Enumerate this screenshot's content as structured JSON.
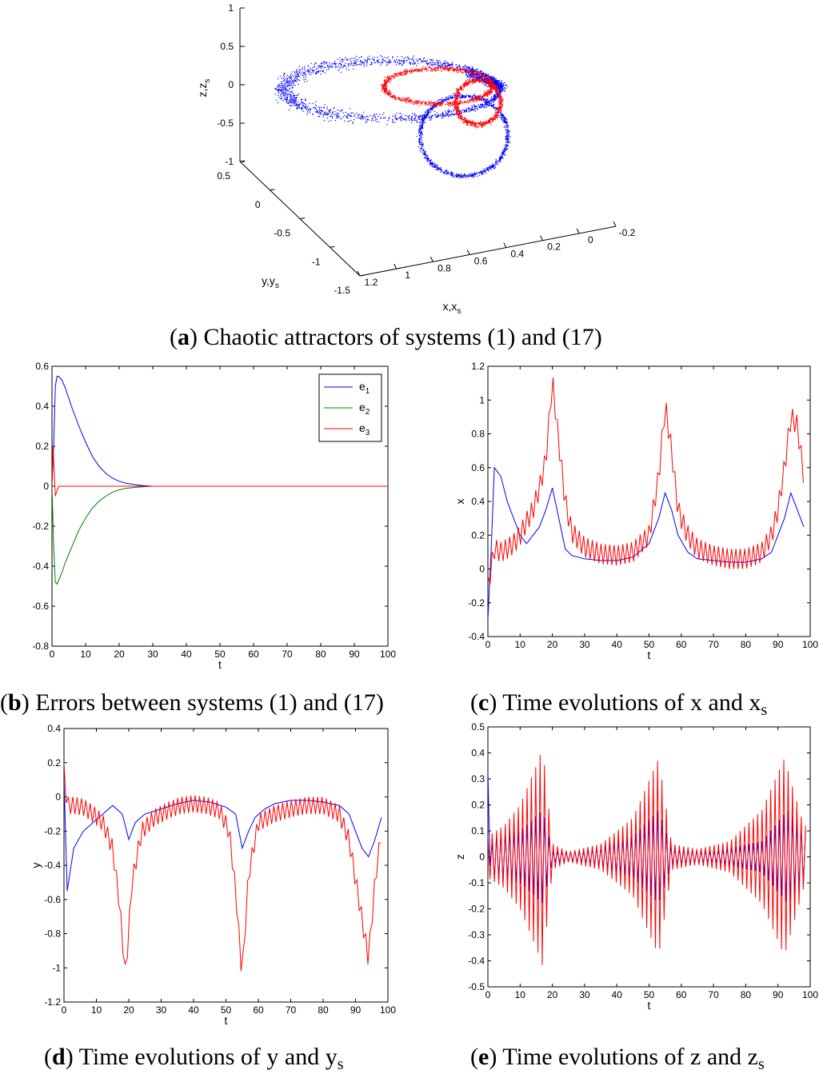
{
  "colors": {
    "blue": "#0000ff",
    "red": "#ff0000",
    "green": "#008000",
    "axis": "#000000"
  },
  "captions": {
    "a": {
      "letter": "a",
      "text": " Chaotic attractors of systems (1) and (17)"
    },
    "b": {
      "letter": "b",
      "text": " Errors between systems (1) and (17)"
    },
    "c": {
      "letter": "c",
      "text": " Time evolutions of x and x",
      "sub": "s"
    },
    "d": {
      "letter": "d",
      "text": " Time evolutions of y and y",
      "sub": "s"
    },
    "e": {
      "letter": "e",
      "text": " Time evolutions of z and z",
      "sub": "s"
    }
  },
  "chart_data": [
    {
      "id": "a",
      "type": "scatter",
      "title": "",
      "projection": "3d",
      "xlabel": "x,x_s",
      "ylabel": "y,y_s",
      "zlabel": "z,z_s",
      "xlim": [
        -0.2,
        1.2
      ],
      "ylim": [
        -1.5,
        0.5
      ],
      "zlim": [
        -1,
        1
      ],
      "x_ticks": [
        "1.2",
        "1",
        "0.8",
        "0.6",
        "0.4",
        "0.2",
        "0",
        "-0.2"
      ],
      "y_ticks": [
        "0.5",
        "0",
        "-0.5",
        "-1",
        "-1.5"
      ],
      "z_ticks": [
        "1",
        "0.5",
        "0",
        "-0.5",
        "-1"
      ],
      "series": [
        {
          "name": "",
          "color": "blue",
          "description_values": "large attractor loop"
        },
        {
          "name": "",
          "color": "red",
          "description_values": "small attractor loop"
        }
      ]
    },
    {
      "id": "b",
      "type": "line",
      "title": "",
      "xlabel": "t",
      "ylabel": "",
      "xlim": [
        0,
        100
      ],
      "ylim": [
        -0.8,
        0.6
      ],
      "x_ticks": [
        "0",
        "10",
        "20",
        "30",
        "40",
        "50",
        "60",
        "70",
        "80",
        "90",
        "100"
      ],
      "y_ticks": [
        "0.6",
        "0.4",
        "0.2",
        "0",
        "-0.2",
        "-0.4",
        "-0.6",
        "-0.8"
      ],
      "legend": [
        "e1",
        "e2",
        "e3"
      ],
      "legend_position": "top-right",
      "series": [
        {
          "name": "e1",
          "color": "blue",
          "x": [
            0,
            0.5,
            1,
            1.5,
            2,
            3,
            4,
            5,
            6,
            8,
            10,
            12,
            14,
            16,
            18,
            20,
            22,
            25,
            28,
            30,
            100
          ],
          "y": [
            0,
            0.2,
            0.5,
            0.55,
            0.55,
            0.53,
            0.49,
            0.44,
            0.39,
            0.3,
            0.22,
            0.15,
            0.1,
            0.065,
            0.04,
            0.025,
            0.015,
            0.007,
            0.002,
            0,
            0
          ]
        },
        {
          "name": "e2",
          "color": "green",
          "x": [
            0,
            0.5,
            1,
            1.5,
            2,
            3,
            4,
            5,
            6,
            8,
            10,
            12,
            14,
            16,
            18,
            20,
            22,
            25,
            28,
            30,
            100
          ],
          "y": [
            0,
            -0.3,
            -0.48,
            -0.49,
            -0.47,
            -0.43,
            -0.38,
            -0.34,
            -0.3,
            -0.22,
            -0.16,
            -0.11,
            -0.075,
            -0.05,
            -0.03,
            -0.018,
            -0.011,
            -0.005,
            -0.002,
            0,
            0
          ]
        },
        {
          "name": "e3",
          "color": "red",
          "x": [
            0,
            0.3,
            0.6,
            1,
            1.5,
            2,
            3,
            4,
            100
          ],
          "y": [
            0,
            0.2,
            0.1,
            -0.05,
            -0.02,
            0,
            0,
            0,
            0
          ]
        }
      ]
    },
    {
      "id": "c",
      "type": "line",
      "title": "",
      "xlabel": "t",
      "ylabel": "x",
      "xlim": [
        0,
        100
      ],
      "ylim": [
        -0.4,
        1.2
      ],
      "x_ticks": [
        "0",
        "10",
        "20",
        "30",
        "40",
        "50",
        "60",
        "70",
        "80",
        "90",
        "100"
      ],
      "y_ticks": [
        "1.2",
        "1",
        "0.8",
        "0.6",
        "0.4",
        "0.2",
        "0",
        "-0.2",
        "-0.4"
      ],
      "series": [
        {
          "name": "",
          "color": "blue",
          "x": [
            0,
            1,
            2,
            4,
            6,
            8,
            10,
            12,
            14,
            16,
            18,
            20,
            22,
            24,
            26,
            30,
            35,
            40,
            45,
            50,
            53,
            55,
            57,
            59,
            62,
            65,
            70,
            75,
            80,
            85,
            88,
            90,
            92,
            94,
            96,
            98
          ],
          "y": [
            -0.3,
            0.1,
            0.6,
            0.55,
            0.4,
            0.3,
            0.2,
            0.15,
            0.2,
            0.25,
            0.35,
            0.48,
            0.3,
            0.12,
            0.08,
            0.06,
            0.05,
            0.05,
            0.07,
            0.15,
            0.3,
            0.45,
            0.35,
            0.2,
            0.1,
            0.06,
            0.05,
            0.04,
            0.04,
            0.06,
            0.1,
            0.2,
            0.3,
            0.45,
            0.35,
            0.25
          ]
        },
        {
          "name": "",
          "color": "red",
          "x": [
            0,
            1,
            2,
            4,
            6,
            8,
            10,
            12,
            14,
            16,
            18,
            20,
            22,
            24,
            26,
            30,
            35,
            40,
            45,
            50,
            53,
            55,
            57,
            59,
            62,
            65,
            70,
            75,
            80,
            85,
            88,
            90,
            92,
            94,
            96,
            98
          ],
          "y": [
            -0.1,
            0.0,
            0.12,
            0.1,
            0.12,
            0.15,
            0.2,
            0.28,
            0.35,
            0.48,
            0.65,
            1.12,
            0.75,
            0.4,
            0.22,
            0.13,
            0.09,
            0.08,
            0.1,
            0.2,
            0.55,
            0.97,
            0.7,
            0.35,
            0.2,
            0.12,
            0.08,
            0.06,
            0.06,
            0.1,
            0.2,
            0.35,
            0.6,
            0.9,
            0.85,
            0.55
          ],
          "oscillation_amplitude": 0.12
        }
      ]
    },
    {
      "id": "d",
      "type": "line",
      "title": "",
      "xlabel": "t",
      "ylabel": "y",
      "xlim": [
        0,
        100
      ],
      "ylim": [
        -1.2,
        0.4
      ],
      "x_ticks": [
        "0",
        "10",
        "20",
        "30",
        "40",
        "50",
        "60",
        "70",
        "80",
        "90",
        "100"
      ],
      "y_ticks": [
        "0.4",
        "0.2",
        "0",
        "-0.2",
        "-0.4",
        "-0.6",
        "-0.8",
        "-1",
        "-1.2"
      ],
      "series": [
        {
          "name": "",
          "color": "blue",
          "x": [
            0,
            1,
            3,
            6,
            9,
            12,
            15,
            18,
            20,
            22,
            25,
            30,
            35,
            40,
            45,
            50,
            53,
            55,
            57,
            59,
            62,
            65,
            70,
            75,
            80,
            85,
            88,
            90,
            92,
            94,
            96,
            98
          ],
          "y": [
            0.1,
            -0.55,
            -0.3,
            -0.2,
            -0.15,
            -0.1,
            -0.05,
            -0.1,
            -0.25,
            -0.15,
            -0.1,
            -0.07,
            -0.04,
            -0.02,
            -0.03,
            -0.06,
            -0.1,
            -0.3,
            -0.2,
            -0.12,
            -0.07,
            -0.04,
            -0.02,
            -0.02,
            -0.03,
            -0.05,
            -0.1,
            -0.2,
            -0.3,
            -0.35,
            -0.25,
            -0.12
          ]
        },
        {
          "name": "",
          "color": "red",
          "x": [
            0,
            1,
            3,
            6,
            9,
            12,
            15,
            17,
            19,
            21,
            24,
            28,
            32,
            36,
            40,
            44,
            48,
            51,
            53,
            55,
            57,
            60,
            65,
            70,
            75,
            80,
            85,
            88,
            91,
            94,
            96,
            98
          ],
          "y": [
            0.15,
            -0.05,
            -0.05,
            -0.06,
            -0.1,
            -0.15,
            -0.3,
            -0.6,
            -1.05,
            -0.5,
            -0.2,
            -0.12,
            -0.08,
            -0.05,
            -0.04,
            -0.05,
            -0.08,
            -0.2,
            -0.55,
            -1.05,
            -0.45,
            -0.15,
            -0.1,
            -0.07,
            -0.05,
            -0.05,
            -0.1,
            -0.25,
            -0.6,
            -0.95,
            -0.5,
            -0.2
          ],
          "oscillation_amplitude": 0.1
        }
      ]
    },
    {
      "id": "e",
      "type": "line",
      "title": "",
      "xlabel": "t",
      "ylabel": "z",
      "xlim": [
        0,
        100
      ],
      "ylim": [
        -0.5,
        0.5
      ],
      "x_ticks": [
        "0",
        "10",
        "20",
        "30",
        "40",
        "50",
        "60",
        "70",
        "80",
        "90",
        "100"
      ],
      "y_ticks": [
        "0.5",
        "0.4",
        "0.3",
        "0.2",
        "0.1",
        "0",
        "-0.1",
        "-0.2",
        "-0.3",
        "-0.4",
        "-0.5"
      ],
      "series": [
        {
          "name": "",
          "color": "blue",
          "x": [
            0,
            1,
            2,
            3,
            100
          ],
          "y": [
            0.25,
            -0.05,
            0,
            0,
            0
          ],
          "envelope": [
            [
              0,
              0.08
            ],
            [
              10,
              0.1
            ],
            [
              17,
              0.18
            ],
            [
              20,
              0.02
            ],
            [
              30,
              0.02
            ],
            [
              45,
              0.08
            ],
            [
              53,
              0.18
            ],
            [
              57,
              0.03
            ],
            [
              70,
              0.02
            ],
            [
              85,
              0.06
            ],
            [
              93,
              0.18
            ],
            [
              98,
              0.1
            ]
          ]
        },
        {
          "name": "",
          "color": "red",
          "x": [
            0,
            100
          ],
          "y": [
            0,
            0
          ],
          "envelope": [
            [
              0,
              0.08
            ],
            [
              5,
              0.12
            ],
            [
              10,
              0.2
            ],
            [
              15,
              0.35
            ],
            [
              17,
              0.42
            ],
            [
              20,
              0.05
            ],
            [
              25,
              0.02
            ],
            [
              35,
              0.05
            ],
            [
              45,
              0.15
            ],
            [
              53,
              0.38
            ],
            [
              57,
              0.05
            ],
            [
              65,
              0.03
            ],
            [
              75,
              0.06
            ],
            [
              85,
              0.18
            ],
            [
              92,
              0.38
            ],
            [
              98,
              0.12
            ]
          ]
        }
      ]
    }
  ]
}
